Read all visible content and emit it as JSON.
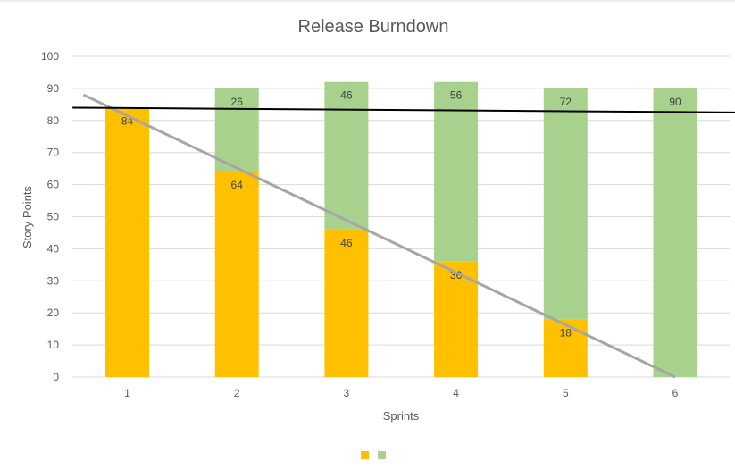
{
  "chart_data": {
    "type": "bar",
    "stacked": true,
    "title": "Release Burndown",
    "xlabel": "Sprints",
    "ylabel": "Story Points",
    "ylim": [
      0,
      100
    ],
    "ytick_step": 10,
    "grid": true,
    "legend_position": "bottom",
    "categories": [
      "1",
      "2",
      "3",
      "4",
      "5",
      "6"
    ],
    "series": [
      {
        "color": "#ffc000",
        "values": [
          84,
          64,
          46,
          36,
          18,
          0
        ],
        "labels": [
          "84",
          "64",
          "46",
          "36",
          "18",
          ""
        ]
      },
      {
        "color": "#a9d18e",
        "values": [
          0,
          26,
          46,
          56,
          72,
          90
        ],
        "labels": [
          "",
          "26",
          "46",
          "56",
          "72",
          "90"
        ]
      }
    ],
    "lines": [
      {
        "kind": "ideal-burndown",
        "color": "#a6a6a6",
        "points": [
          [
            0.6,
            88
          ],
          [
            6,
            0
          ]
        ]
      },
      {
        "kind": "scope-trend",
        "color": "#000000",
        "points": [
          [
            0.5,
            84
          ],
          [
            6.55,
            82.5
          ]
        ]
      }
    ]
  }
}
